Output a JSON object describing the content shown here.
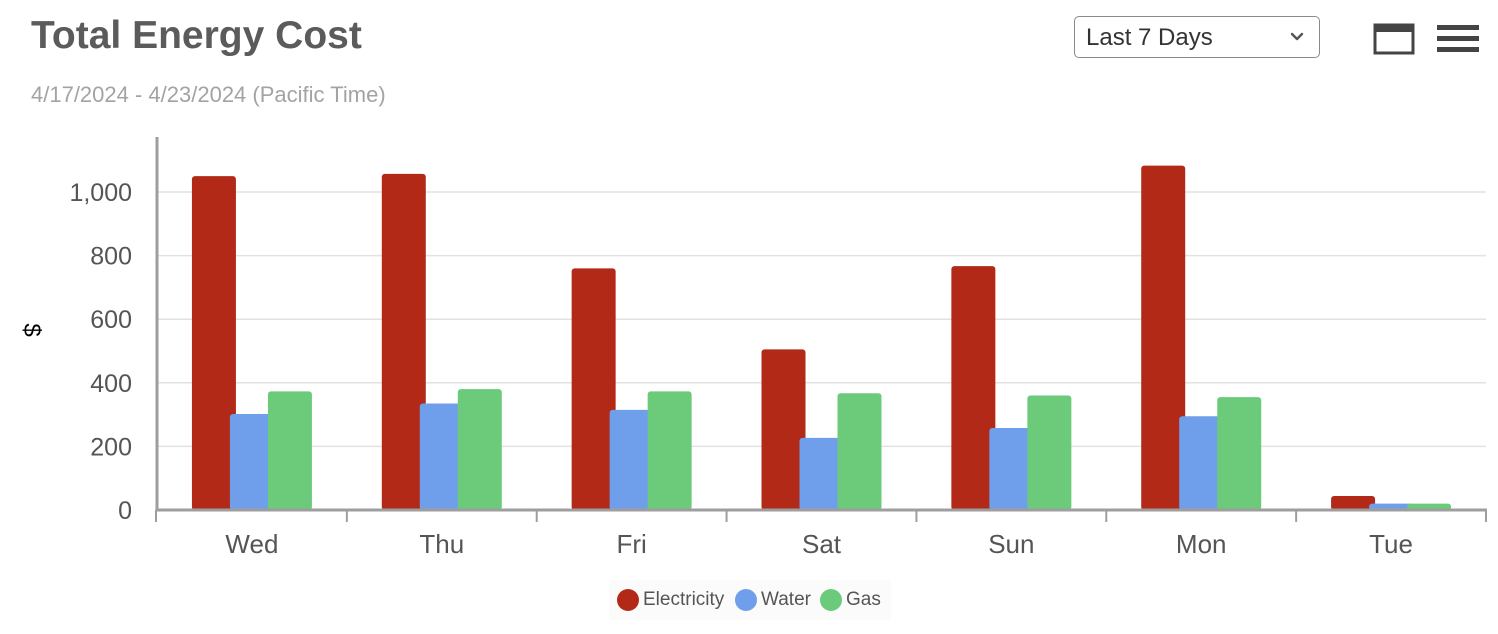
{
  "header": {
    "title": "Total Energy Cost",
    "subtitle": "4/17/2024 - 4/23/2024 (Pacific Time)"
  },
  "controls": {
    "range_value": "Last 7 Days",
    "range_icon": "chevron-down-icon",
    "window_icon": "window-icon",
    "menu_icon": "hamburger-menu-icon"
  },
  "chart_data": {
    "type": "bar",
    "categories": [
      "Wed",
      "Thu",
      "Fri",
      "Sat",
      "Sun",
      "Mon",
      "Tue"
    ],
    "series": [
      {
        "name": "Electricity",
        "color": "#b22a17",
        "values": [
          1050,
          1057,
          760,
          505,
          767,
          1083,
          44
        ]
      },
      {
        "name": "Water",
        "color": "#6f9eeb",
        "values": [
          302,
          335,
          315,
          227,
          258,
          295,
          20
        ]
      },
      {
        "name": "Gas",
        "color": "#6ccb7b",
        "values": [
          373,
          380,
          373,
          367,
          360,
          355,
          20
        ]
      }
    ],
    "ylabel": "$",
    "xlabel": "",
    "ylim": [
      0,
      1180
    ],
    "yticks": [
      0,
      200,
      400,
      600,
      800,
      1000
    ],
    "ytick_labels": [
      "0",
      "200",
      "400",
      "600",
      "800",
      "1,000"
    ],
    "grid": true,
    "legend_position": "bottom-center"
  }
}
